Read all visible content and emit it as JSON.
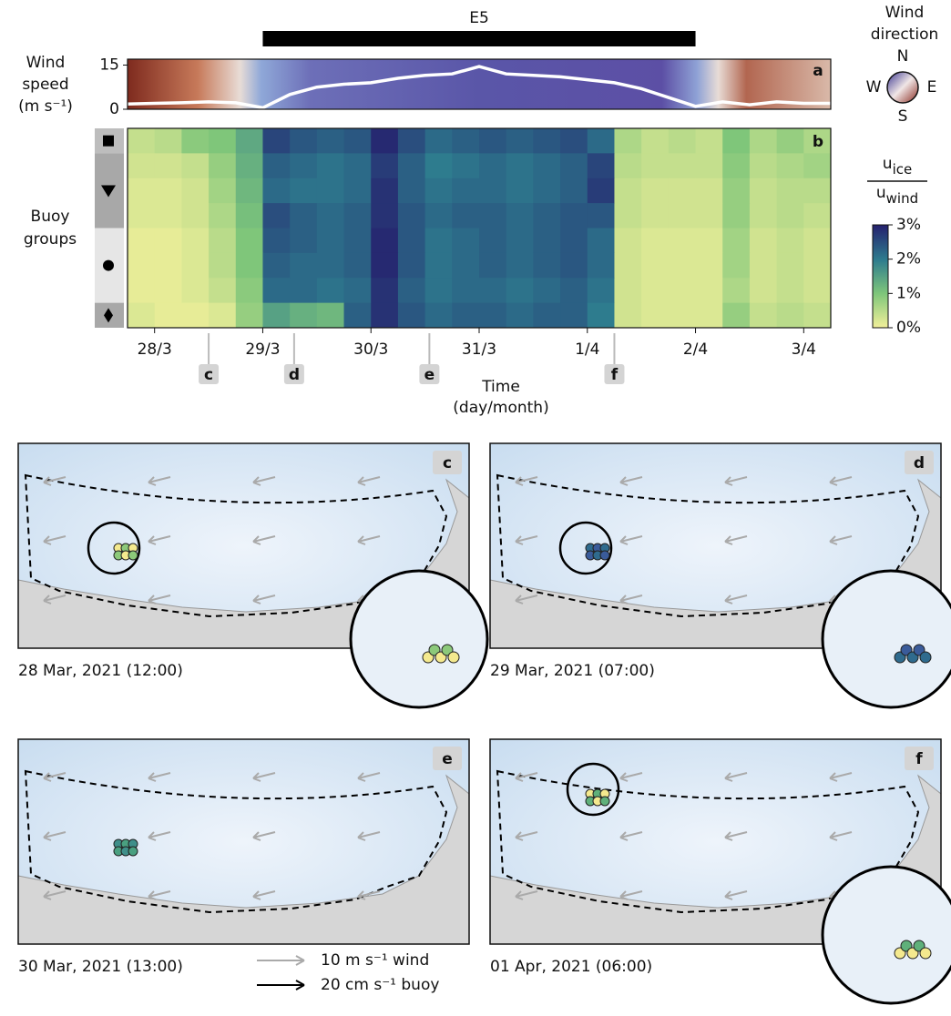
{
  "chart_data": [
    {
      "type": "line",
      "panel": "a",
      "ylabel": [
        "Wind",
        "speed",
        "(m s⁻¹)"
      ],
      "x": [
        -0.25,
        0,
        0.25,
        0.5,
        0.75,
        1.0,
        1.25,
        1.5,
        1.75,
        2.0,
        2.25,
        2.5,
        2.75,
        3.0,
        3.25,
        3.5,
        3.75,
        4.0,
        4.25,
        4.5,
        4.75,
        5.0,
        5.25,
        5.5,
        5.75,
        6.0,
        6.25
      ],
      "values": [
        1.8,
        2,
        2.2,
        2.5,
        2.2,
        0.5,
        5,
        7.5,
        8.5,
        9,
        10.5,
        11.5,
        12,
        14.5,
        12,
        11.5,
        11,
        10,
        9,
        7,
        4,
        1,
        2.5,
        1.5,
        2.5,
        2,
        2
      ],
      "color": "#ffffff",
      "xlim": [
        -0.25,
        6.25
      ],
      "ylim": [
        0,
        17
      ],
      "yticks": [
        0,
        15
      ],
      "period": {
        "label": "E5",
        "start": 1.0,
        "end": 5.0
      },
      "direction_legend": {
        "title": [
          "Wind",
          "direction"
        ],
        "labels": [
          "N",
          "E",
          "S",
          "W"
        ]
      }
    },
    {
      "type": "heatmap",
      "panel": "b",
      "ylabel": [
        "Buoy",
        "groups"
      ],
      "xlabel": [
        "Time",
        "(day/month)"
      ],
      "bins": [
        -0.25,
        0,
        0.25,
        0.5,
        0.75,
        1.0,
        1.25,
        1.5,
        1.75,
        2.0,
        2.25,
        2.5,
        2.75,
        3.0,
        3.25,
        3.5,
        3.75,
        4.0,
        4.25,
        4.5,
        4.75,
        5.0,
        5.25,
        5.5,
        5.75,
        6.0,
        6.25
      ],
      "rows": [
        [
          0.4,
          0.5,
          0.9,
          1.0,
          1.4,
          2.6,
          2.4,
          2.3,
          2.4,
          2.9,
          2.5,
          2.2,
          2.3,
          2.4,
          2.3,
          2.4,
          2.5,
          2.2,
          0.6,
          0.4,
          0.5,
          0.4,
          1.0,
          0.6,
          0.8,
          0.6
        ],
        [
          0.3,
          0.3,
          0.4,
          0.8,
          1.3,
          2.3,
          2.2,
          2.1,
          2.2,
          2.7,
          2.3,
          2.0,
          2.1,
          2.2,
          2.1,
          2.2,
          2.3,
          2.6,
          0.5,
          0.4,
          0.4,
          0.4,
          0.9,
          0.5,
          0.6,
          0.7
        ],
        [
          0.2,
          0.2,
          0.3,
          0.7,
          1.2,
          2.2,
          2.1,
          2.1,
          2.2,
          2.8,
          2.3,
          2.1,
          2.2,
          2.2,
          2.1,
          2.2,
          2.3,
          2.7,
          0.4,
          0.3,
          0.3,
          0.3,
          0.8,
          0.4,
          0.5,
          0.5
        ],
        [
          0.2,
          0.2,
          0.3,
          0.6,
          1.1,
          2.5,
          2.3,
          2.2,
          2.3,
          2.8,
          2.4,
          2.2,
          2.3,
          2.3,
          2.2,
          2.3,
          2.4,
          2.4,
          0.4,
          0.3,
          0.3,
          0.3,
          0.8,
          0.4,
          0.5,
          0.4
        ],
        [
          0.1,
          0.1,
          0.2,
          0.5,
          1.0,
          2.4,
          2.3,
          2.2,
          2.3,
          2.9,
          2.4,
          2.1,
          2.2,
          2.3,
          2.2,
          2.3,
          2.4,
          2.2,
          0.3,
          0.2,
          0.2,
          0.2,
          0.7,
          0.3,
          0.4,
          0.3
        ],
        [
          0.1,
          0.1,
          0.2,
          0.5,
          1.0,
          2.3,
          2.2,
          2.2,
          2.3,
          2.9,
          2.4,
          2.1,
          2.2,
          2.3,
          2.2,
          2.3,
          2.4,
          2.2,
          0.3,
          0.2,
          0.2,
          0.2,
          0.7,
          0.3,
          0.4,
          0.3
        ],
        [
          0.1,
          0.1,
          0.2,
          0.4,
          0.9,
          2.2,
          2.2,
          2.1,
          2.2,
          2.8,
          2.3,
          2.1,
          2.2,
          2.2,
          2.1,
          2.2,
          2.3,
          2.1,
          0.3,
          0.2,
          0.2,
          0.2,
          0.6,
          0.3,
          0.4,
          0.3
        ],
        [
          0.2,
          0.1,
          0.1,
          0.2,
          0.8,
          1.5,
          1.3,
          1.2,
          2.3,
          2.8,
          2.4,
          2.2,
          2.3,
          2.3,
          2.2,
          2.3,
          2.3,
          2.0,
          0.3,
          0.2,
          0.2,
          0.2,
          0.8,
          0.4,
          0.5,
          0.4
        ]
      ],
      "xlim": [
        -0.25,
        6.25
      ],
      "xticks": [
        {
          "value": 0,
          "label": "28/3"
        },
        {
          "value": 1,
          "label": "29/3"
        },
        {
          "value": 2,
          "label": "30/3"
        },
        {
          "value": 3,
          "label": "31/3"
        },
        {
          "value": 4,
          "label": "1/4"
        },
        {
          "value": 5,
          "label": "2/4"
        },
        {
          "value": 6,
          "label": "3/4"
        }
      ],
      "colorbar": {
        "label": {
          "num": "u",
          "num_sub": "ice",
          "den": "u",
          "den_sub": "wind"
        },
        "lim": [
          0,
          3
        ],
        "ticks": [
          {
            "value": 0,
            "label": "0%"
          },
          {
            "value": 1,
            "label": "1%"
          },
          {
            "value": 2,
            "label": "2%"
          },
          {
            "value": 3,
            "label": "3%"
          }
        ]
      },
      "events": [
        {
          "label": "c",
          "x": 0.5
        },
        {
          "label": "d",
          "x": 1.29
        },
        {
          "label": "e",
          "x": 2.54
        },
        {
          "label": "f",
          "x": 4.25
        }
      ]
    }
  ],
  "maps": [
    {
      "panel": "c",
      "caption": "28 Mar, 2021 (12:00)"
    },
    {
      "panel": "d",
      "caption": "29 Mar, 2021 (07:00)"
    },
    {
      "panel": "e",
      "caption": "30 Mar, 2021 (13:00)"
    },
    {
      "panel": "f",
      "caption": "01 Apr, 2021 (06:00)"
    }
  ],
  "map_legend": [
    "10 m s⁻¹ wind",
    "20 cm s⁻¹ buoy"
  ]
}
